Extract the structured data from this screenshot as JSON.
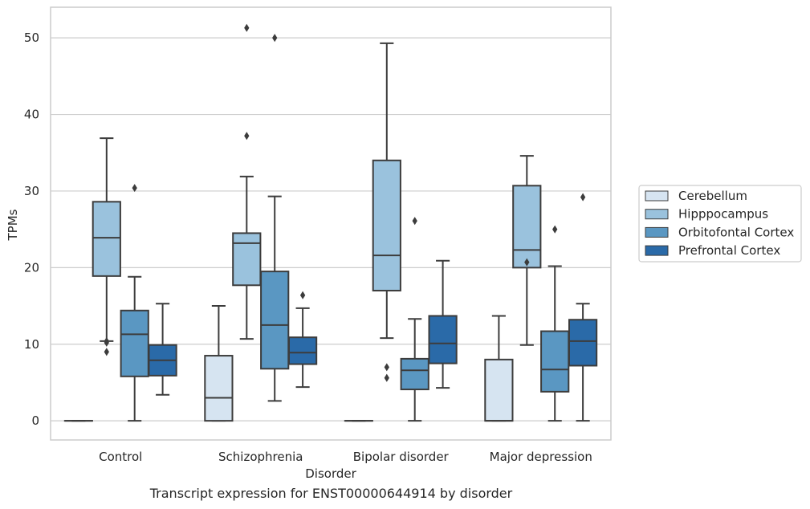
{
  "caption": "Transcript expression for ENST00000644914 by disorder",
  "chart_data": {
    "type": "box",
    "title": "",
    "xlabel": "Disorder",
    "ylabel": "TPMs",
    "ylim": [
      -2.5,
      54
    ],
    "yticks": [
      0,
      10,
      20,
      30,
      40,
      50
    ],
    "grid": "horizontal",
    "legend_position": "right",
    "categories": [
      "Control",
      "Schizophrenia",
      "Bipolar disorder",
      "Major depression"
    ],
    "series": [
      {
        "name": "Cerebellum",
        "color": "#d6e4f1",
        "boxes": [
          {
            "whislo": 0,
            "q1": 0,
            "med": 0,
            "q3": 0,
            "whishi": 0,
            "fliers": []
          },
          {
            "whislo": 0,
            "q1": 0,
            "med": 3.0,
            "q3": 8.5,
            "whishi": 15.0,
            "fliers": []
          },
          {
            "whislo": 0,
            "q1": 0,
            "med": 0,
            "q3": 0,
            "whishi": 0,
            "fliers": []
          },
          {
            "whislo": 0,
            "q1": 0,
            "med": 0,
            "q3": 8.0,
            "whishi": 13.7,
            "fliers": []
          }
        ]
      },
      {
        "name": "Hipppocampus",
        "color": "#9ac2dd",
        "boxes": [
          {
            "whislo": 10.4,
            "q1": 18.9,
            "med": 23.9,
            "q3": 28.6,
            "whishi": 36.9,
            "fliers": [
              10.2,
              10.4,
              9.0
            ]
          },
          {
            "whislo": 10.7,
            "q1": 17.7,
            "med": 23.2,
            "q3": 24.5,
            "whishi": 31.9,
            "fliers": [
              37.2,
              51.3
            ]
          },
          {
            "whislo": 10.8,
            "q1": 17.0,
            "med": 21.6,
            "q3": 34.0,
            "whishi": 49.3,
            "fliers": [
              5.6,
              7.0
            ]
          },
          {
            "whislo": 9.9,
            "q1": 20.0,
            "med": 22.3,
            "q3": 30.7,
            "whishi": 34.6,
            "fliers": [
              20.7
            ]
          }
        ]
      },
      {
        "name": "Orbitofontal Cortex",
        "color": "#5a97c2",
        "boxes": [
          {
            "whislo": 0,
            "q1": 5.8,
            "med": 11.3,
            "q3": 14.4,
            "whishi": 18.8,
            "fliers": [
              30.4
            ]
          },
          {
            "whislo": 2.6,
            "q1": 6.8,
            "med": 12.5,
            "q3": 19.5,
            "whishi": 29.3,
            "fliers": [
              50.0
            ]
          },
          {
            "whislo": 0,
            "q1": 4.1,
            "med": 6.6,
            "q3": 8.1,
            "whishi": 13.3,
            "fliers": [
              26.1
            ]
          },
          {
            "whislo": 0,
            "q1": 3.8,
            "med": 6.7,
            "q3": 11.7,
            "whishi": 20.2,
            "fliers": [
              25.0
            ]
          }
        ]
      },
      {
        "name": "Prefrontal Cortex",
        "color": "#2a6aa8",
        "boxes": [
          {
            "whislo": 3.4,
            "q1": 5.9,
            "med": 7.9,
            "q3": 9.9,
            "whishi": 15.3,
            "fliers": []
          },
          {
            "whislo": 4.4,
            "q1": 7.4,
            "med": 8.9,
            "q3": 10.9,
            "whishi": 14.7,
            "fliers": [
              16.4
            ]
          },
          {
            "whislo": 4.3,
            "q1": 7.5,
            "med": 10.1,
            "q3": 13.7,
            "whishi": 20.9,
            "fliers": []
          },
          {
            "whislo": 0,
            "q1": 7.2,
            "med": 10.4,
            "q3": 13.2,
            "whishi": 15.3,
            "fliers": [
              29.2
            ]
          }
        ]
      }
    ]
  }
}
